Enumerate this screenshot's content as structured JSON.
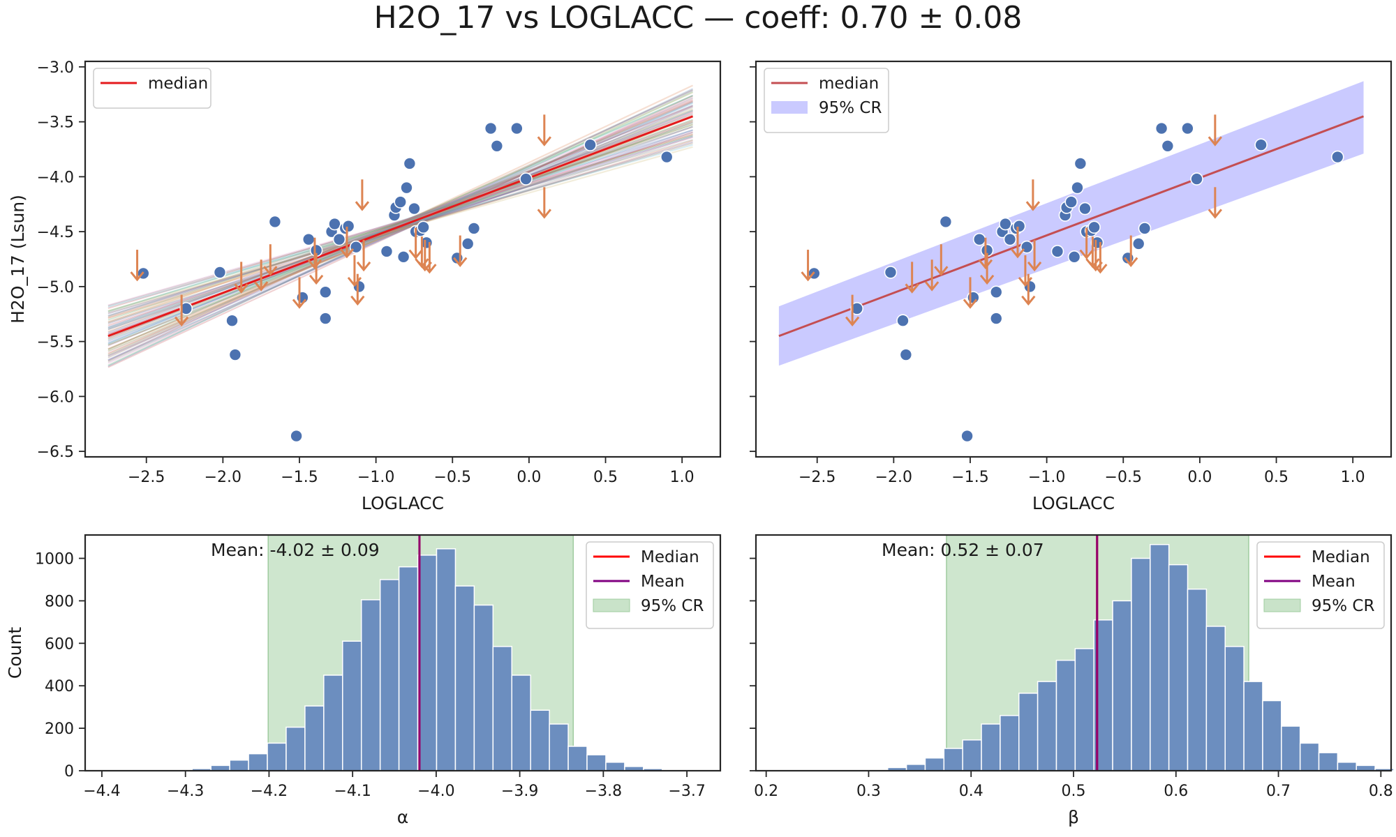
{
  "figure": {
    "title": "H2O_17 vs LOGLACC — coeff: 0.70 ± 0.08"
  },
  "colors": {
    "points": "#4c72b0",
    "upper_limits": "#dd8452",
    "median_line_left": "#e41a1c",
    "median_line_right": "#c44e52",
    "band_right": "#b3b3ff",
    "hist_bars": "#6c8ebf",
    "hist_cr": "#c9e3c9",
    "mean_line": "#800080",
    "median_hist": "#ff0000"
  },
  "chart_data": [
    {
      "id": "scatter_left",
      "type": "scatter",
      "xlabel": "LOGLACC",
      "ylabel": "H2O_17 (Lsun)",
      "xlim": [
        -2.9,
        1.25
      ],
      "ylim": [
        -6.55,
        -2.95
      ],
      "xticks": [
        "-2.5",
        "-2.0",
        "-1.5",
        "-1.0",
        "-0.5",
        "0.0",
        "0.5",
        "1.0"
      ],
      "yticks": [
        "-3.0",
        "-3.5",
        "-4.0",
        "-4.5",
        "-5.0",
        "-5.5",
        "-6.0",
        "-6.5"
      ],
      "legend": {
        "position": "upper-left",
        "entries": [
          "median"
        ]
      },
      "median_line": {
        "x": [
          -2.75,
          1.07
        ],
        "y": [
          -5.45,
          -3.45
        ]
      },
      "posterior_draws": 60,
      "points": [
        [
          -2.52,
          -4.88
        ],
        [
          -2.24,
          -5.2
        ],
        [
          -2.02,
          -4.87
        ],
        [
          -1.94,
          -5.31
        ],
        [
          -1.92,
          -5.62
        ],
        [
          -1.66,
          -4.41
        ],
        [
          -1.52,
          -6.36
        ],
        [
          -1.48,
          -5.1
        ],
        [
          -1.44,
          -4.57
        ],
        [
          -1.39,
          -4.67
        ],
        [
          -1.33,
          -5.29
        ],
        [
          -1.33,
          -5.05
        ],
        [
          -1.29,
          -4.5
        ],
        [
          -1.27,
          -4.43
        ],
        [
          -1.24,
          -4.57
        ],
        [
          -1.2,
          -4.47
        ],
        [
          -1.18,
          -4.45
        ],
        [
          -1.13,
          -4.64
        ],
        [
          -1.11,
          -5.0
        ],
        [
          -0.93,
          -4.68
        ],
        [
          -0.88,
          -4.35
        ],
        [
          -0.87,
          -4.28
        ],
        [
          -0.84,
          -4.23
        ],
        [
          -0.82,
          -4.73
        ],
        [
          -0.8,
          -4.1
        ],
        [
          -0.78,
          -3.88
        ],
        [
          -0.75,
          -4.29
        ],
        [
          -0.74,
          -4.5
        ],
        [
          -0.71,
          -4.49
        ],
        [
          -0.69,
          -4.46
        ],
        [
          -0.67,
          -4.6
        ],
        [
          -0.47,
          -4.74
        ],
        [
          -0.4,
          -4.61
        ],
        [
          -0.36,
          -4.47
        ],
        [
          -0.25,
          -3.56
        ],
        [
          -0.21,
          -3.72
        ],
        [
          -0.08,
          -3.56
        ],
        [
          -0.02,
          -4.02
        ],
        [
          0.4,
          -3.71
        ],
        [
          0.9,
          -3.82
        ]
      ],
      "upper_limits": [
        [
          -2.56,
          -4.69
        ],
        [
          -2.27,
          -5.1
        ],
        [
          -1.88,
          -4.8
        ],
        [
          -1.75,
          -4.78
        ],
        [
          -1.69,
          -4.64
        ],
        [
          -1.5,
          -4.94
        ],
        [
          -1.4,
          -4.58
        ],
        [
          -1.39,
          -4.72
        ],
        [
          -1.19,
          -4.48
        ],
        [
          -1.14,
          -4.74
        ],
        [
          -1.12,
          -4.91
        ],
        [
          -1.09,
          -4.05
        ],
        [
          -1.08,
          -4.6
        ],
        [
          -0.74,
          -4.49
        ],
        [
          -0.7,
          -4.57
        ],
        [
          -0.68,
          -4.6
        ],
        [
          -0.65,
          -4.62
        ],
        [
          -0.45,
          -4.56
        ],
        [
          0.1,
          -3.46
        ],
        [
          0.1,
          -4.12
        ]
      ]
    },
    {
      "id": "scatter_right",
      "type": "scatter",
      "xlabel": "LOGLACC",
      "xlim": [
        -2.9,
        1.25
      ],
      "ylim": [
        -6.55,
        -2.95
      ],
      "xticks": [
        "-2.5",
        "-2.0",
        "-1.5",
        "-1.0",
        "-0.5",
        "0.0",
        "0.5",
        "1.0"
      ],
      "legend": {
        "position": "upper-left",
        "entries": [
          "median",
          "95% CR"
        ]
      },
      "median_line": {
        "x": [
          -2.75,
          1.07
        ],
        "y": [
          -5.45,
          -3.45
        ]
      },
      "band": {
        "x": [
          -2.75,
          1.07
        ],
        "upper": [
          -5.18,
          -3.13
        ],
        "lower": [
          -5.72,
          -3.79
        ]
      }
    },
    {
      "id": "hist_alpha",
      "type": "bar",
      "xlabel": "α",
      "ylabel": "Count",
      "xlim": [
        -4.42,
        -3.66
      ],
      "ylim": [
        0,
        1110
      ],
      "xticks": [
        "-4.4",
        "-4.3",
        "-4.2",
        "-4.1",
        "-4.0",
        "-3.9",
        "-3.8",
        "-3.7"
      ],
      "yticks": [
        "0",
        "200",
        "400",
        "600",
        "800",
        "1000"
      ],
      "bin_start": -4.382,
      "bin_width": 0.0225,
      "counts": [
        1,
        2,
        3,
        5,
        10,
        25,
        50,
        80,
        130,
        205,
        305,
        450,
        610,
        805,
        900,
        960,
        1015,
        1045,
        870,
        780,
        585,
        450,
        285,
        220,
        115,
        75,
        40,
        20,
        10,
        4,
        2
      ],
      "mean": -4.02,
      "median": -4.02,
      "cr": [
        -4.201,
        -3.836
      ],
      "annotation": "Mean: -4.02 ± 0.09",
      "legend": {
        "position": "upper-right",
        "entries": [
          "Median",
          "Mean",
          "95% CR"
        ]
      }
    },
    {
      "id": "hist_beta",
      "type": "bar",
      "xlabel": "β",
      "xlim": [
        0.19,
        0.81
      ],
      "ylim": [
        0,
        1110
      ],
      "xticks": [
        "0.2",
        "0.3",
        "0.4",
        "0.5",
        "0.6",
        "0.7",
        "0.8"
      ],
      "bin_start": 0.282,
      "bin_width": 0.0183,
      "counts": [
        2,
        5,
        15,
        30,
        60,
        105,
        145,
        220,
        260,
        365,
        420,
        520,
        575,
        710,
        800,
        1000,
        1065,
        970,
        855,
        680,
        585,
        420,
        330,
        210,
        130,
        85,
        40,
        25,
        10,
        5
      ],
      "mean": 0.523,
      "median": 0.523,
      "cr": [
        0.376,
        0.671
      ],
      "annotation": "Mean: 0.52 ± 0.07",
      "legend": {
        "position": "upper-right",
        "entries": [
          "Median",
          "Mean",
          "95% CR"
        ]
      }
    }
  ]
}
